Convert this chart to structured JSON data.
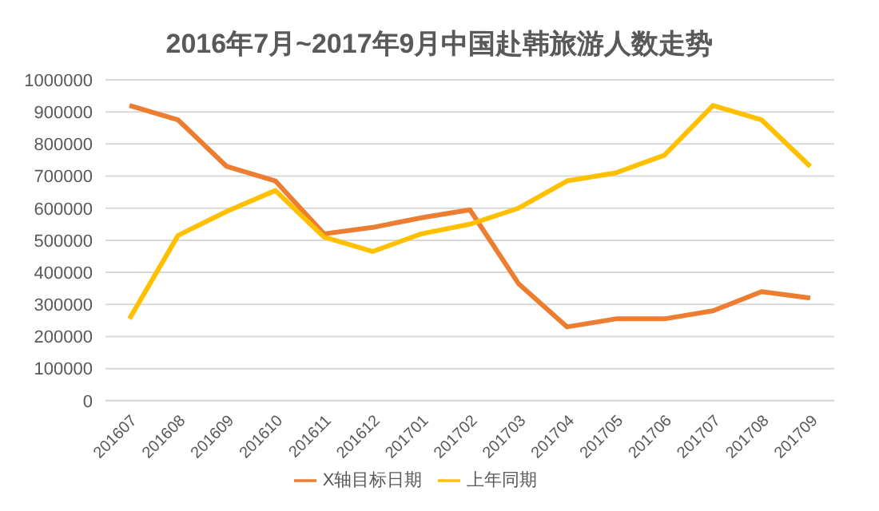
{
  "chart_data": {
    "type": "line",
    "title": "2016年7月~2017年9月中国赴韩旅游人数走势",
    "categories": [
      "201607",
      "201608",
      "201609",
      "201610",
      "201611",
      "201612",
      "201701",
      "201702",
      "201703",
      "201704",
      "201705",
      "201706",
      "201707",
      "201708",
      "201709"
    ],
    "series": [
      {
        "name": "X轴目标日期",
        "color": "#ed7d31",
        "values": [
          920000,
          875000,
          730000,
          685000,
          520000,
          540000,
          570000,
          595000,
          365000,
          230000,
          255000,
          255000,
          280000,
          340000,
          320000
        ]
      },
      {
        "name": "上年同期",
        "color": "#ffc000",
        "values": [
          255000,
          515000,
          590000,
          655000,
          510000,
          465000,
          520000,
          550000,
          600000,
          685000,
          710000,
          765000,
          920000,
          875000,
          730000
        ]
      }
    ],
    "ylim": [
      0,
      1000000
    ],
    "yticks": [
      0,
      100000,
      200000,
      300000,
      400000,
      500000,
      600000,
      700000,
      800000,
      900000,
      1000000
    ],
    "grid": "y",
    "legend": "bottom",
    "marker": "none",
    "line_style": "solid"
  }
}
